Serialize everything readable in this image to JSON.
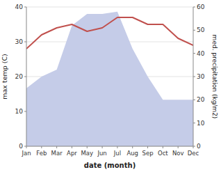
{
  "chart_data": {
    "type": "line",
    "xlabel": "date (month)",
    "ylabel": "max temp (C)",
    "y2label": "med. precipitation (kg/m2)",
    "categories": [
      "Jan",
      "Feb",
      "Mar",
      "Apr",
      "May",
      "Jun",
      "Jul",
      "Aug",
      "Sep",
      "Oct",
      "Nov",
      "Dec"
    ],
    "series": [
      {
        "type": "area",
        "axis": "y2",
        "color": "#c5cce8",
        "values": [
          25,
          30,
          33,
          52,
          57,
          57,
          58,
          42,
          30,
          20,
          20,
          20
        ]
      },
      {
        "type": "line",
        "color": "#c0504d",
        "values": [
          28,
          32,
          34,
          35,
          33,
          34,
          37,
          37,
          35,
          35,
          31,
          29
        ]
      }
    ],
    "ylim": [
      0,
      40
    ],
    "yticks": [
      0,
      10,
      20,
      30,
      40
    ],
    "y2lim": [
      0,
      60
    ],
    "y2ticks": [
      0,
      10,
      20,
      30,
      40,
      50,
      60
    ],
    "grid": true
  }
}
